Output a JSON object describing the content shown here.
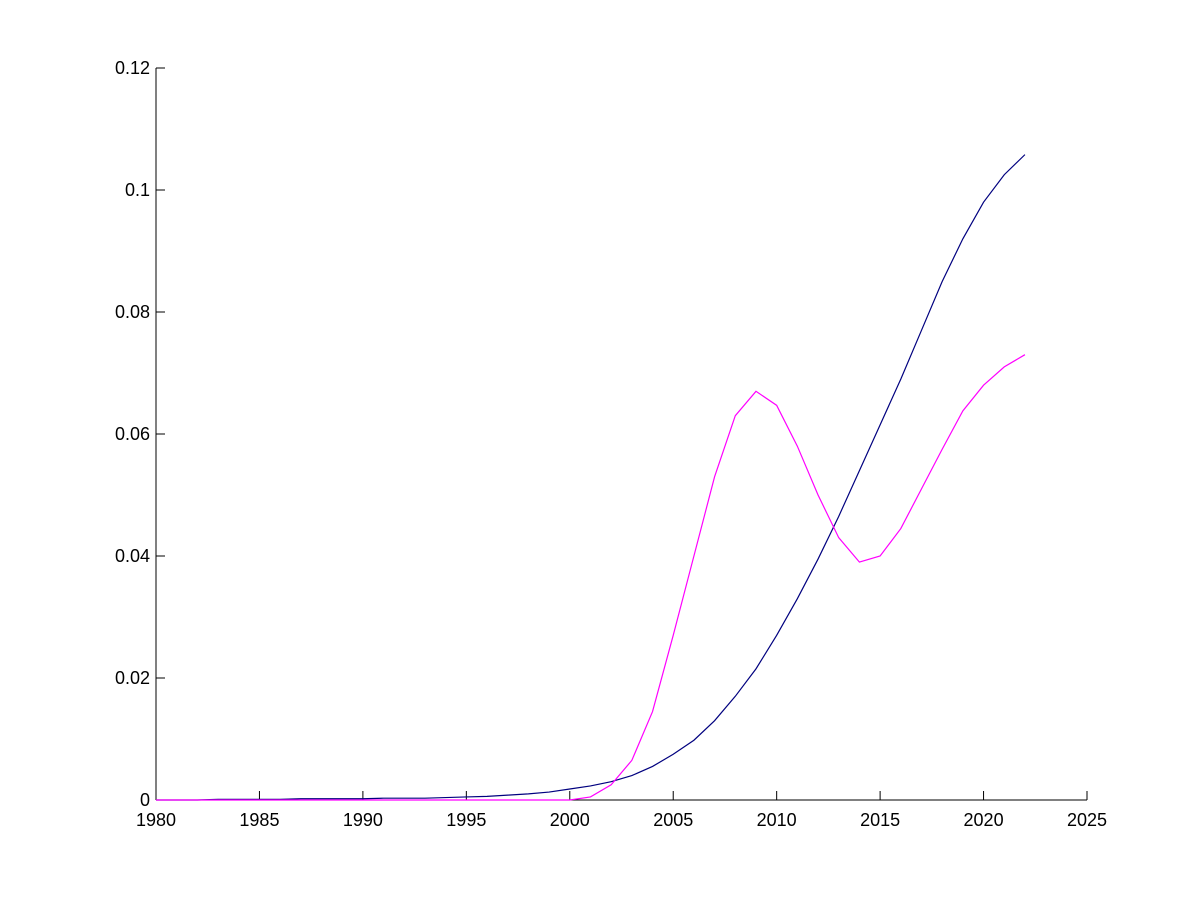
{
  "chart_data": {
    "type": "line",
    "x": [
      1980,
      1981,
      1982,
      1983,
      1984,
      1985,
      1986,
      1987,
      1988,
      1989,
      1990,
      1991,
      1992,
      1993,
      1994,
      1995,
      1996,
      1997,
      1998,
      1999,
      2000,
      2001,
      2002,
      2003,
      2004,
      2005,
      2006,
      2007,
      2008,
      2009,
      2010,
      2011,
      2012,
      2013,
      2014,
      2015,
      2016,
      2017,
      2018,
      2019,
      2020,
      2021,
      2022
    ],
    "series": [
      {
        "color": "#00007f",
        "values": [
          0,
          0,
          0,
          0.0001,
          0.0001,
          0.0001,
          0.0001,
          0.0002,
          0.0002,
          0.0002,
          0.0002,
          0.0003,
          0.0003,
          0.0003,
          0.0004,
          0.0005,
          0.0006,
          0.0008,
          0.001,
          0.0013,
          0.0018,
          0.0023,
          0.003,
          0.004,
          0.0055,
          0.0075,
          0.0098,
          0.013,
          0.017,
          0.0215,
          0.027,
          0.033,
          0.0395,
          0.0465,
          0.054,
          0.0615,
          0.069,
          0.077,
          0.085,
          0.092,
          0.098,
          0.1025,
          0.1058
        ]
      },
      {
        "color": "#ff00ff",
        "values": [
          0,
          0,
          0,
          0,
          0,
          0,
          0,
          0,
          0,
          0,
          0,
          0,
          0,
          0,
          0,
          0,
          0,
          0,
          0,
          0,
          0,
          0.0005,
          0.0025,
          0.0065,
          0.0145,
          0.027,
          0.04,
          0.053,
          0.063,
          0.067,
          0.0647,
          0.058,
          0.05,
          0.043,
          0.039,
          0.04,
          0.0445,
          0.051,
          0.0575,
          0.0638,
          0.068,
          0.071,
          0.073
        ]
      }
    ],
    "xlim": [
      1980,
      2025
    ],
    "xticks": [
      1980,
      1985,
      1990,
      1995,
      2000,
      2005,
      2010,
      2015,
      2020,
      2025
    ],
    "ylim": [
      0,
      0.12
    ],
    "yticks": [
      0,
      0.02,
      0.04,
      0.06,
      0.08,
      0.1,
      0.12
    ]
  }
}
